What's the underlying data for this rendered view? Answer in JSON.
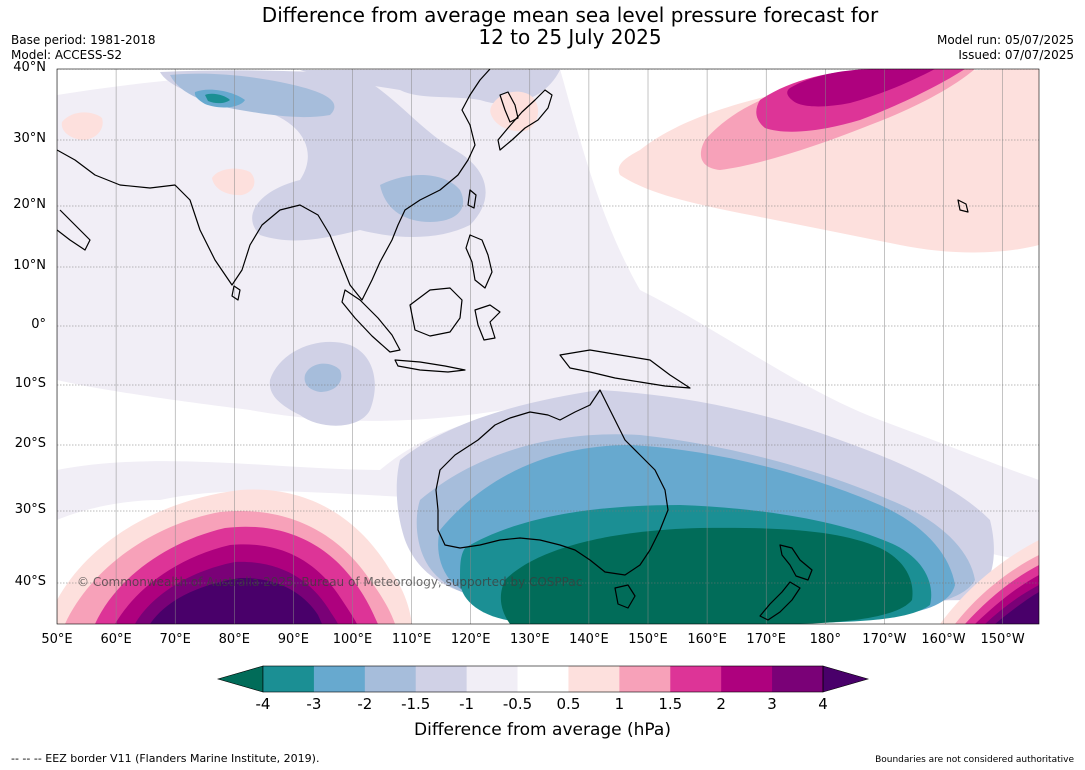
{
  "title_line1": "Difference from average mean sea level pressure forecast for",
  "title_line2": "12 to 25 July 2025",
  "meta_left": [
    "Base period: 1981-2018",
    "Model: ACCESS-S2"
  ],
  "meta_right": [
    "Model run: 05/07/2025",
    "Issued: 07/07/2025"
  ],
  "lat_labels": [
    "40°N",
    "30°N",
    "20°N",
    "10°N",
    "0°",
    "10°S",
    "20°S",
    "30°S",
    "40°S"
  ],
  "lon_labels": [
    "50°E",
    "60°E",
    "70°E",
    "80°E",
    "90°E",
    "100°E",
    "110°E",
    "120°E",
    "130°E",
    "140°E",
    "150°E",
    "160°E",
    "170°E",
    "180°",
    "170°W",
    "160°W",
    "150°W"
  ],
  "copyright": "© Commonwealth of Australia 2025, Bureau of Meteorology, supported by COSPPac",
  "colorbar": {
    "ticks": [
      "-4",
      "-3",
      "-2",
      "-1.5",
      "-1",
      "-0.5",
      "0.5",
      "1",
      "1.5",
      "2",
      "3",
      "4"
    ],
    "colors": [
      "#1b8f94",
      "#67a9cf",
      "#a6bddb",
      "#d0d1e6",
      "#f1eef6",
      "#ffffff",
      "#fde0dd",
      "#f7a1b9",
      "#dd3497",
      "#ae017e",
      "#7a0177"
    ],
    "low_extend_color": "#016c59",
    "high_extend_color": "#49006a",
    "label": "Difference from average (hPa)"
  },
  "footer_left": "--  --  -- EEZ border V11 (Flanders Marine Institute, 2019).",
  "footer_right": "Boundaries are not considered authoritative"
}
